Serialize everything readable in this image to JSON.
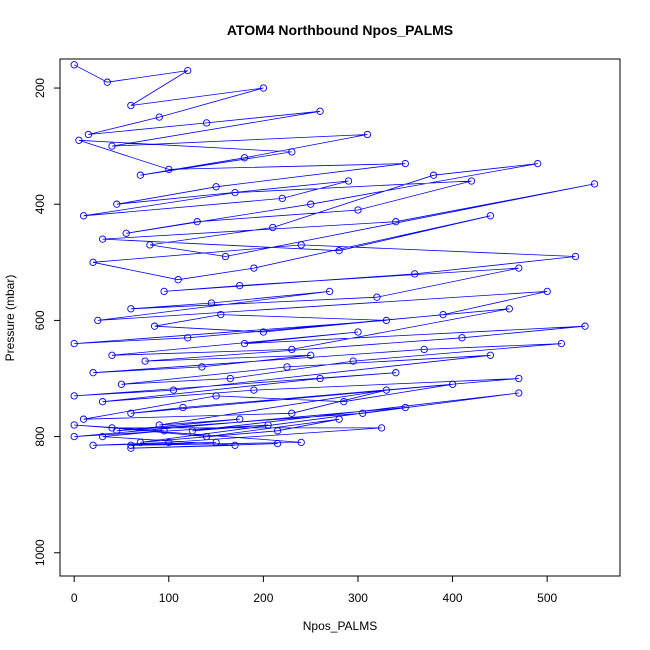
{
  "chart_data": {
    "type": "line",
    "title": "ATOM4 Northbound Npos_PALMS",
    "xlabel": "Npos_PALMS",
    "ylabel": "Pressure (mbar)",
    "xlim": [
      -15,
      577
    ],
    "ylim": [
      1040,
      150
    ],
    "y_axis": "reversed",
    "x_ticks": [
      0,
      100,
      200,
      300,
      400,
      500
    ],
    "y_ticks": [
      200,
      400,
      600,
      800,
      1000
    ],
    "series_color": "#0000ff",
    "marker": "open-circle",
    "line_style": "solid",
    "grid": false,
    "legend": "none",
    "series": [
      {
        "x": [
          0,
          35,
          120,
          60,
          200,
          90,
          15,
          140,
          260,
          40,
          310,
          180,
          70,
          230,
          5,
          100,
          350,
          150,
          45,
          290,
          220,
          10,
          170,
          420,
          300,
          130,
          55,
          250,
          490,
          380,
          210,
          80,
          160,
          550,
          340,
          30,
          280,
          440,
          190,
          110,
          20,
          240,
          530,
          360,
          95,
          175,
          470,
          320,
          60,
          145,
          270,
          25,
          500,
          390,
          200,
          85,
          155,
          330,
          0,
          120,
          460,
          230,
          40,
          300,
          180,
          540,
          410,
          75,
          250,
          135,
          20,
          370,
          515,
          295,
          165,
          50,
          225,
          440,
          105,
          0,
          340,
          260,
          30,
          190,
          470,
          115,
          60,
          400,
          285,
          150,
          10,
          230,
          330,
          90,
          175,
          45,
          305,
          470,
          125,
          205,
          0,
          350,
          70,
          215,
          280,
          140,
          40,
          325,
          100,
          20,
          150,
          60,
          240,
          0,
          95,
          30,
          170,
          60,
          215
        ],
        "y": [
          160,
          190,
          170,
          230,
          200,
          250,
          280,
          260,
          240,
          300,
          280,
          320,
          350,
          310,
          290,
          340,
          330,
          370,
          400,
          360,
          390,
          420,
          380,
          360,
          410,
          430,
          450,
          400,
          330,
          350,
          440,
          470,
          490,
          365,
          430,
          460,
          480,
          420,
          510,
          530,
          500,
          470,
          490,
          520,
          550,
          540,
          510,
          560,
          580,
          570,
          550,
          600,
          550,
          590,
          620,
          610,
          590,
          600,
          640,
          630,
          580,
          650,
          660,
          620,
          640,
          610,
          630,
          670,
          660,
          680,
          690,
          650,
          640,
          670,
          700,
          710,
          680,
          660,
          720,
          730,
          690,
          700,
          740,
          720,
          700,
          750,
          760,
          710,
          740,
          730,
          770,
          760,
          720,
          780,
          770,
          790,
          760,
          725,
          790,
          780,
          800,
          750,
          810,
          790,
          770,
          800,
          785,
          785,
          810,
          815,
          810,
          815,
          810,
          780,
          790,
          800,
          815,
          820,
          812
        ]
      }
    ]
  }
}
